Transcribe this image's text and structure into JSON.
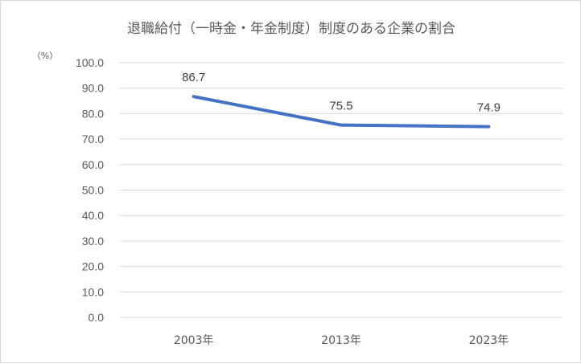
{
  "chart_data": {
    "type": "line",
    "title": "退職給付（一時金・年金制度）制度のある企業の割合",
    "unit_label": "（%）",
    "categories": [
      "2003年",
      "2013年",
      "2023年"
    ],
    "series": [
      {
        "values": [
          86.7,
          75.5,
          74.9
        ],
        "color": "#4472c4"
      }
    ],
    "data_labels": [
      "86.7",
      "75.5",
      "74.9"
    ],
    "ylim": [
      0,
      100
    ],
    "y_step": 10,
    "y_ticks": [
      "0.0",
      "10.0",
      "20.0",
      "30.0",
      "40.0",
      "50.0",
      "60.0",
      "70.0",
      "80.0",
      "90.0",
      "100.0"
    ],
    "grid": true,
    "legend": "none"
  }
}
